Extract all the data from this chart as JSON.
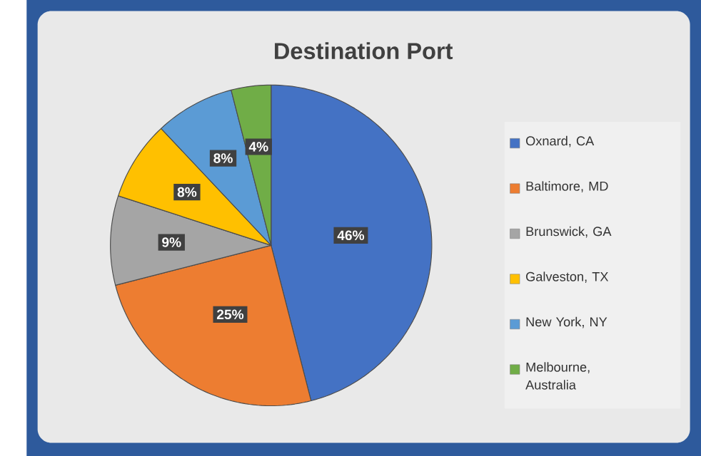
{
  "chart_data": {
    "type": "pie",
    "title": "Destination Port",
    "categories": [
      "Oxnard, CA",
      "Baltimore, MD",
      "Brunswick, GA",
      "Galveston, TX",
      "New York, NY",
      "Melbourne, Australia"
    ],
    "values": [
      46,
      25,
      9,
      8,
      8,
      4
    ],
    "colors": [
      "#4472c4",
      "#ed7d31",
      "#a5a5a5",
      "#ffc000",
      "#5b9bd5",
      "#70ad47"
    ],
    "value_labels": [
      "46%",
      "25%",
      "9%",
      "8%",
      "8%",
      "4%"
    ],
    "legend": "right"
  }
}
